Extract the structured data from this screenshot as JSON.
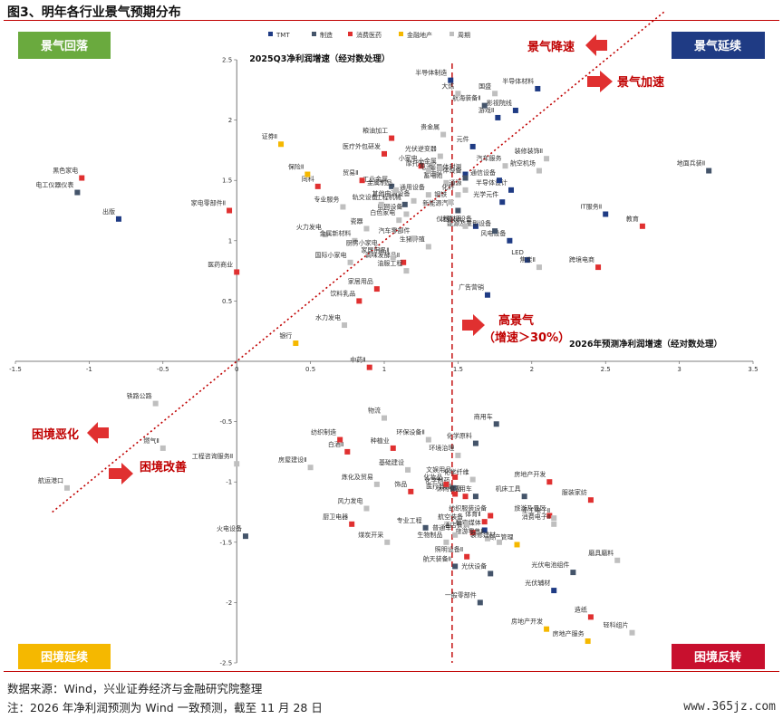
{
  "figure_title": "图3、明年各行业景气预期分布",
  "source_note": "数据来源：Wind，兴业证券经济与金融研究院整理",
  "footnote": "注：2026 年净利润预测为 Wind 一致预测，截至 11 月 28 日",
  "watermark": "www.365jz.com",
  "quadrants": {
    "top_left": "景气回落",
    "top_right": "景气延续",
    "bottom_left": "困境延续",
    "bottom_right": "困境反转"
  },
  "quadrant_colors": {
    "top_left": "#6aaa3e",
    "top_right": "#1f3b84",
    "bottom_left": "#f5b800",
    "bottom_right": "#c8102e"
  },
  "annotations": {
    "slowing": "景气降速",
    "accelerating": "景气加速",
    "high_growth_line1": "高景气",
    "high_growth_line2": "（增速＞30%）",
    "worsening": "困境恶化",
    "improving": "困境改善"
  },
  "chart_data": {
    "type": "scatter",
    "xlabel": "2026年预测净利润增速（经对数处理）",
    "ylabel": "2025Q3净利润增速（经对数处理）",
    "xlim": [
      -1.5,
      3.5
    ],
    "ylim": [
      -2.5,
      2.5
    ],
    "xticks": [
      "-1.5",
      "-1",
      "-0.5",
      "0",
      "0.5",
      "1",
      "1.5",
      "2",
      "2.5",
      "3",
      "3.5"
    ],
    "yticks": [
      "2.5",
      "2",
      "1.5",
      "1",
      "0.5",
      "-0.5",
      "-1",
      "-1.5",
      "-2",
      "-2.5"
    ],
    "reference_x": 1.46,
    "diagonal": [
      [
        -1.25,
        -1.25
      ],
      [
        2.9,
        2.9
      ]
    ],
    "grid": false,
    "legend_position": "top",
    "series": [
      {
        "name": "TMT",
        "color": "#1f3b84",
        "points": [
          {
            "label": "半导体制造",
            "x": 1.45,
            "y": 2.33
          },
          {
            "label": "半导体材料",
            "x": 2.04,
            "y": 2.26
          },
          {
            "label": "LED",
            "x": 1.97,
            "y": 0.84
          },
          {
            "label": "光学元件",
            "x": 1.8,
            "y": 1.32
          },
          {
            "label": "半导体设计",
            "x": 1.86,
            "y": 1.42
          },
          {
            "label": "通信设备",
            "x": 1.78,
            "y": 1.5
          },
          {
            "label": "元件",
            "x": 1.6,
            "y": 1.78
          },
          {
            "label": "IT服务Ⅱ",
            "x": 2.5,
            "y": 1.22
          },
          {
            "label": "计算机设备",
            "x": 1.62,
            "y": 1.12
          },
          {
            "label": "广告营销",
            "x": 1.7,
            "y": 0.55
          },
          {
            "label": "出版",
            "x": -0.8,
            "y": 1.18
          },
          {
            "label": "影视院线",
            "x": 1.89,
            "y": 2.08
          },
          {
            "label": "游戏Ⅱ",
            "x": 1.77,
            "y": 2.02
          },
          {
            "label": "数字媒体",
            "x": 1.68,
            "y": -1.4
          },
          {
            "label": "光伏辅材",
            "x": 2.15,
            "y": -1.9
          },
          {
            "label": "风电设备",
            "x": 1.85,
            "y": 1.0
          },
          {
            "label": "半导体封测",
            "x": 1.55,
            "y": 1.55
          }
        ]
      },
      {
        "name": "制造",
        "color": "#44546a",
        "points": [
          {
            "label": "地面兵装Ⅱ",
            "x": 3.2,
            "y": 1.58
          },
          {
            "label": "航海装备Ⅱ",
            "x": 1.68,
            "y": 2.12
          },
          {
            "label": "电工仪器仪表",
            "x": -1.08,
            "y": 1.4
          },
          {
            "label": "工业金属",
            "x": 1.05,
            "y": 1.45
          },
          {
            "label": "商用车",
            "x": 1.76,
            "y": -0.52
          },
          {
            "label": "化学原料",
            "x": 1.62,
            "y": -0.68
          },
          {
            "label": "专业工程",
            "x": 1.28,
            "y": -1.38
          },
          {
            "label": "火电设备",
            "x": 0.06,
            "y": -1.45
          },
          {
            "label": "半导体设备",
            "x": 1.55,
            "y": 1.52
          },
          {
            "label": "光伏电池组件",
            "x": 2.28,
            "y": -1.75
          },
          {
            "label": "乘用车",
            "x": 1.62,
            "y": -1.12
          },
          {
            "label": "航天装备Ⅱ",
            "x": 1.48,
            "y": -1.7
          },
          {
            "label": "工程机械",
            "x": 1.14,
            "y": 1.3
          },
          {
            "label": "新能源汽车",
            "x": 1.5,
            "y": 1.25
          },
          {
            "label": "能源及重型设备",
            "x": 1.75,
            "y": 1.08
          },
          {
            "label": "机床工具",
            "x": 1.95,
            "y": -1.12
          },
          {
            "label": "化学制药",
            "x": 1.47,
            "y": -1.05
          },
          {
            "label": "光伏设备",
            "x": 1.72,
            "y": -1.76
          },
          {
            "label": "一般零部件",
            "x": 1.65,
            "y": -2.0
          }
        ]
      },
      {
        "name": "消费医药",
        "color": "#e03030",
        "points": [
          {
            "label": "黑色家电",
            "x": -1.05,
            "y": 1.52
          },
          {
            "label": "家电零部件Ⅱ",
            "x": -0.05,
            "y": 1.25
          },
          {
            "label": "医药商业",
            "x": 0.0,
            "y": 0.74
          },
          {
            "label": "教育",
            "x": 2.75,
            "y": 1.12
          },
          {
            "label": "跨境电商",
            "x": 2.45,
            "y": 0.78
          },
          {
            "label": "中药Ⅱ",
            "x": 0.9,
            "y": -0.05
          },
          {
            "label": "医疗外包研发",
            "x": 1.0,
            "y": 1.72
          },
          {
            "label": "粮油加工",
            "x": 1.05,
            "y": 1.85
          },
          {
            "label": "调味发酵品Ⅱ",
            "x": 1.13,
            "y": 0.82
          },
          {
            "label": "家居用品",
            "x": 0.95,
            "y": 0.6
          },
          {
            "label": "饮料乳品",
            "x": 0.83,
            "y": 0.5
          },
          {
            "label": "厨卫电器",
            "x": 0.78,
            "y": -1.35
          },
          {
            "label": "白酒Ⅱ",
            "x": 0.75,
            "y": -0.75
          },
          {
            "label": "医疗器械",
            "x": 1.48,
            "y": -1.1
          },
          {
            "label": "酒店餐饮",
            "x": 1.6,
            "y": -1.42
          },
          {
            "label": "旅游及景区",
            "x": 2.12,
            "y": -1.28
          },
          {
            "label": "饰品",
            "x": 1.18,
            "y": -1.08
          },
          {
            "label": "造纸",
            "x": 2.4,
            "y": -2.12
          },
          {
            "label": "服装家纺",
            "x": 2.4,
            "y": -1.15
          },
          {
            "label": "休闲食品",
            "x": 1.55,
            "y": -1.12
          },
          {
            "label": "贸易Ⅱ",
            "x": 0.85,
            "y": 1.5
          },
          {
            "label": "纺织制造",
            "x": 0.7,
            "y": -0.65
          },
          {
            "label": "种植业",
            "x": 1.06,
            "y": -0.72
          },
          {
            "label": "化妆品",
            "x": 1.42,
            "y": -1.02
          },
          {
            "label": "同科",
            "x": 0.55,
            "y": 1.45
          },
          {
            "label": "小家电",
            "x": 1.25,
            "y": 1.62
          },
          {
            "label": "照明设备Ⅱ",
            "x": 1.56,
            "y": -1.62
          },
          {
            "label": "房地产开发",
            "x": 2.12,
            "y": -1.0
          },
          {
            "label": "纺织服装设备",
            "x": 1.72,
            "y": -1.28
          },
          {
            "label": "体育Ⅱ",
            "x": 1.68,
            "y": -1.33
          },
          {
            "label": "文娱用品",
            "x": 1.48,
            "y": -0.96
          }
        ]
      },
      {
        "name": "金融地产",
        "color": "#f5b800",
        "points": [
          {
            "label": "证券Ⅱ",
            "x": 0.3,
            "y": 1.8
          },
          {
            "label": "保险Ⅱ",
            "x": 0.48,
            "y": 1.55
          },
          {
            "label": "银行",
            "x": 0.4,
            "y": 0.15
          },
          {
            "label": "资产管理",
            "x": 1.9,
            "y": -1.52
          },
          {
            "label": "房地产开发",
            "x": 2.1,
            "y": -2.22
          },
          {
            "label": "房地产服务",
            "x": 2.38,
            "y": -2.32
          }
        ]
      },
      {
        "name": "周期",
        "color": "#bfbfbf",
        "points": [
          {
            "label": "铁路公路",
            "x": -0.55,
            "y": -0.35
          },
          {
            "label": "燃气Ⅱ",
            "x": -0.5,
            "y": -0.72
          },
          {
            "label": "航运港口",
            "x": -1.15,
            "y": -1.05
          },
          {
            "label": "工程咨询服务Ⅱ",
            "x": 0.0,
            "y": -0.85
          },
          {
            "label": "房屋建设Ⅱ",
            "x": 0.5,
            "y": -0.88
          },
          {
            "label": "风力发电",
            "x": 0.88,
            "y": -1.22
          },
          {
            "label": "煤炭开采",
            "x": 1.02,
            "y": -1.5
          },
          {
            "label": "基础建设",
            "x": 1.16,
            "y": -0.9
          },
          {
            "label": "炼化及贸易",
            "x": 0.95,
            "y": -1.02
          },
          {
            "label": "环保设备Ⅱ",
            "x": 1.3,
            "y": -0.65
          },
          {
            "label": "环境治理",
            "x": 1.5,
            "y": -0.78
          },
          {
            "label": "物流",
            "x": 1.0,
            "y": -0.47
          },
          {
            "label": "水力发电",
            "x": 0.73,
            "y": 0.3
          },
          {
            "label": "火力发电",
            "x": 0.6,
            "y": 1.05
          },
          {
            "label": "装修装饰Ⅱ",
            "x": 2.1,
            "y": 1.68
          },
          {
            "label": "航空机场",
            "x": 2.05,
            "y": 1.58
          },
          {
            "label": "焦炭Ⅱ",
            "x": 2.05,
            "y": 0.78
          },
          {
            "label": "贵金属",
            "x": 1.4,
            "y": 1.88
          },
          {
            "label": "油服工程",
            "x": 1.15,
            "y": 0.75
          },
          {
            "label": "生猪养殖",
            "x": 1.3,
            "y": 0.95
          },
          {
            "label": "汽车零部件",
            "x": 1.2,
            "y": 1.02
          },
          {
            "label": "金属新材料",
            "x": 0.8,
            "y": 1.0
          },
          {
            "label": "白色家电",
            "x": 1.1,
            "y": 1.17
          },
          {
            "label": "瓷器",
            "x": 0.88,
            "y": 1.1
          },
          {
            "label": "电网设备",
            "x": 1.15,
            "y": 1.22
          },
          {
            "label": "光伏逆变器",
            "x": 1.38,
            "y": 1.7
          },
          {
            "label": "小金属",
            "x": 1.38,
            "y": 1.6
          },
          {
            "label": "大炼",
            "x": 1.5,
            "y": 2.22
          },
          {
            "label": "专业服务",
            "x": 0.72,
            "y": 1.28
          },
          {
            "label": "轨交设备",
            "x": 0.98,
            "y": 1.3
          },
          {
            "label": "通用设备",
            "x": 1.3,
            "y": 1.38
          },
          {
            "label": "其他电源设备",
            "x": 1.2,
            "y": 1.33
          },
          {
            "label": "厨房小家电",
            "x": 0.98,
            "y": 0.92
          },
          {
            "label": "电池",
            "x": 1.35,
            "y": 1.55
          },
          {
            "label": "蓄电池",
            "x": 1.42,
            "y": 1.48
          },
          {
            "label": "汽车服务",
            "x": 1.82,
            "y": 1.62
          },
          {
            "label": "摩托车",
            "x": 1.3,
            "y": 1.58
          },
          {
            "label": "仪器仪表",
            "x": 1.55,
            "y": 1.12
          },
          {
            "label": "金属制品",
            "x": 1.08,
            "y": 1.42
          },
          {
            "label": "化纤",
            "x": 1.5,
            "y": 1.38
          },
          {
            "label": "通源",
            "x": 1.55,
            "y": 1.42
          },
          {
            "label": "国盛",
            "x": 1.75,
            "y": 2.22
          },
          {
            "label": "钢铁",
            "x": 1.45,
            "y": 1.32
          },
          {
            "label": "化学纤维",
            "x": 1.6,
            "y": -0.98
          },
          {
            "label": "旅游零售Ⅱ",
            "x": 1.7,
            "y": -1.47
          },
          {
            "label": "生物制品",
            "x": 1.42,
            "y": -1.5
          },
          {
            "label": "普通车",
            "x": 1.48,
            "y": -1.44
          },
          {
            "label": "航空装备",
            "x": 1.56,
            "y": -1.35
          },
          {
            "label": "装修建材",
            "x": 1.78,
            "y": -1.5
          },
          {
            "label": "消费电子Ⅱ",
            "x": 2.15,
            "y": -1.35
          },
          {
            "label": "军工电子Ⅱ",
            "x": 2.15,
            "y": -1.3
          },
          {
            "label": "轻科组片",
            "x": 2.68,
            "y": -2.25
          },
          {
            "label": "磨具磨料",
            "x": 2.58,
            "y": -1.65
          },
          {
            "label": "家居用品Ⅱ",
            "x": 1.06,
            "y": 0.86
          },
          {
            "label": "国际小家电",
            "x": 0.77,
            "y": 0.82
          }
        ]
      }
    ]
  }
}
